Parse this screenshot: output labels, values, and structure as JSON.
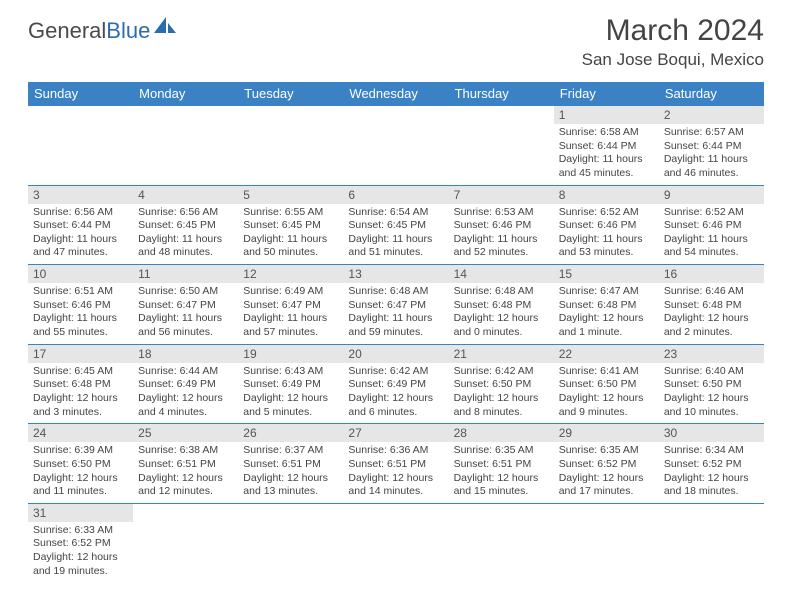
{
  "logo": {
    "part1": "General",
    "part2": "Blue"
  },
  "title": "March 2024",
  "location": "San Jose Boqui, Mexico",
  "colors": {
    "header_bg": "#3b82c4",
    "header_text": "#ffffff",
    "daynum_bg": "#e6e6e6",
    "border": "#3b82c4",
    "text": "#444444"
  },
  "weekdays": [
    "Sunday",
    "Monday",
    "Tuesday",
    "Wednesday",
    "Thursday",
    "Friday",
    "Saturday"
  ],
  "weeks": [
    [
      null,
      null,
      null,
      null,
      null,
      {
        "n": "1",
        "l1": "Sunrise: 6:58 AM",
        "l2": "Sunset: 6:44 PM",
        "l3": "Daylight: 11 hours",
        "l4": "and 45 minutes."
      },
      {
        "n": "2",
        "l1": "Sunrise: 6:57 AM",
        "l2": "Sunset: 6:44 PM",
        "l3": "Daylight: 11 hours",
        "l4": "and 46 minutes."
      }
    ],
    [
      {
        "n": "3",
        "l1": "Sunrise: 6:56 AM",
        "l2": "Sunset: 6:44 PM",
        "l3": "Daylight: 11 hours",
        "l4": "and 47 minutes."
      },
      {
        "n": "4",
        "l1": "Sunrise: 6:56 AM",
        "l2": "Sunset: 6:45 PM",
        "l3": "Daylight: 11 hours",
        "l4": "and 48 minutes."
      },
      {
        "n": "5",
        "l1": "Sunrise: 6:55 AM",
        "l2": "Sunset: 6:45 PM",
        "l3": "Daylight: 11 hours",
        "l4": "and 50 minutes."
      },
      {
        "n": "6",
        "l1": "Sunrise: 6:54 AM",
        "l2": "Sunset: 6:45 PM",
        "l3": "Daylight: 11 hours",
        "l4": "and 51 minutes."
      },
      {
        "n": "7",
        "l1": "Sunrise: 6:53 AM",
        "l2": "Sunset: 6:46 PM",
        "l3": "Daylight: 11 hours",
        "l4": "and 52 minutes."
      },
      {
        "n": "8",
        "l1": "Sunrise: 6:52 AM",
        "l2": "Sunset: 6:46 PM",
        "l3": "Daylight: 11 hours",
        "l4": "and 53 minutes."
      },
      {
        "n": "9",
        "l1": "Sunrise: 6:52 AM",
        "l2": "Sunset: 6:46 PM",
        "l3": "Daylight: 11 hours",
        "l4": "and 54 minutes."
      }
    ],
    [
      {
        "n": "10",
        "l1": "Sunrise: 6:51 AM",
        "l2": "Sunset: 6:46 PM",
        "l3": "Daylight: 11 hours",
        "l4": "and 55 minutes."
      },
      {
        "n": "11",
        "l1": "Sunrise: 6:50 AM",
        "l2": "Sunset: 6:47 PM",
        "l3": "Daylight: 11 hours",
        "l4": "and 56 minutes."
      },
      {
        "n": "12",
        "l1": "Sunrise: 6:49 AM",
        "l2": "Sunset: 6:47 PM",
        "l3": "Daylight: 11 hours",
        "l4": "and 57 minutes."
      },
      {
        "n": "13",
        "l1": "Sunrise: 6:48 AM",
        "l2": "Sunset: 6:47 PM",
        "l3": "Daylight: 11 hours",
        "l4": "and 59 minutes."
      },
      {
        "n": "14",
        "l1": "Sunrise: 6:48 AM",
        "l2": "Sunset: 6:48 PM",
        "l3": "Daylight: 12 hours",
        "l4": "and 0 minutes."
      },
      {
        "n": "15",
        "l1": "Sunrise: 6:47 AM",
        "l2": "Sunset: 6:48 PM",
        "l3": "Daylight: 12 hours",
        "l4": "and 1 minute."
      },
      {
        "n": "16",
        "l1": "Sunrise: 6:46 AM",
        "l2": "Sunset: 6:48 PM",
        "l3": "Daylight: 12 hours",
        "l4": "and 2 minutes."
      }
    ],
    [
      {
        "n": "17",
        "l1": "Sunrise: 6:45 AM",
        "l2": "Sunset: 6:48 PM",
        "l3": "Daylight: 12 hours",
        "l4": "and 3 minutes."
      },
      {
        "n": "18",
        "l1": "Sunrise: 6:44 AM",
        "l2": "Sunset: 6:49 PM",
        "l3": "Daylight: 12 hours",
        "l4": "and 4 minutes."
      },
      {
        "n": "19",
        "l1": "Sunrise: 6:43 AM",
        "l2": "Sunset: 6:49 PM",
        "l3": "Daylight: 12 hours",
        "l4": "and 5 minutes."
      },
      {
        "n": "20",
        "l1": "Sunrise: 6:42 AM",
        "l2": "Sunset: 6:49 PM",
        "l3": "Daylight: 12 hours",
        "l4": "and 6 minutes."
      },
      {
        "n": "21",
        "l1": "Sunrise: 6:42 AM",
        "l2": "Sunset: 6:50 PM",
        "l3": "Daylight: 12 hours",
        "l4": "and 8 minutes."
      },
      {
        "n": "22",
        "l1": "Sunrise: 6:41 AM",
        "l2": "Sunset: 6:50 PM",
        "l3": "Daylight: 12 hours",
        "l4": "and 9 minutes."
      },
      {
        "n": "23",
        "l1": "Sunrise: 6:40 AM",
        "l2": "Sunset: 6:50 PM",
        "l3": "Daylight: 12 hours",
        "l4": "and 10 minutes."
      }
    ],
    [
      {
        "n": "24",
        "l1": "Sunrise: 6:39 AM",
        "l2": "Sunset: 6:50 PM",
        "l3": "Daylight: 12 hours",
        "l4": "and 11 minutes."
      },
      {
        "n": "25",
        "l1": "Sunrise: 6:38 AM",
        "l2": "Sunset: 6:51 PM",
        "l3": "Daylight: 12 hours",
        "l4": "and 12 minutes."
      },
      {
        "n": "26",
        "l1": "Sunrise: 6:37 AM",
        "l2": "Sunset: 6:51 PM",
        "l3": "Daylight: 12 hours",
        "l4": "and 13 minutes."
      },
      {
        "n": "27",
        "l1": "Sunrise: 6:36 AM",
        "l2": "Sunset: 6:51 PM",
        "l3": "Daylight: 12 hours",
        "l4": "and 14 minutes."
      },
      {
        "n": "28",
        "l1": "Sunrise: 6:35 AM",
        "l2": "Sunset: 6:51 PM",
        "l3": "Daylight: 12 hours",
        "l4": "and 15 minutes."
      },
      {
        "n": "29",
        "l1": "Sunrise: 6:35 AM",
        "l2": "Sunset: 6:52 PM",
        "l3": "Daylight: 12 hours",
        "l4": "and 17 minutes."
      },
      {
        "n": "30",
        "l1": "Sunrise: 6:34 AM",
        "l2": "Sunset: 6:52 PM",
        "l3": "Daylight: 12 hours",
        "l4": "and 18 minutes."
      }
    ],
    [
      {
        "n": "31",
        "l1": "Sunrise: 6:33 AM",
        "l2": "Sunset: 6:52 PM",
        "l3": "Daylight: 12 hours",
        "l4": "and 19 minutes."
      },
      null,
      null,
      null,
      null,
      null,
      null
    ]
  ]
}
